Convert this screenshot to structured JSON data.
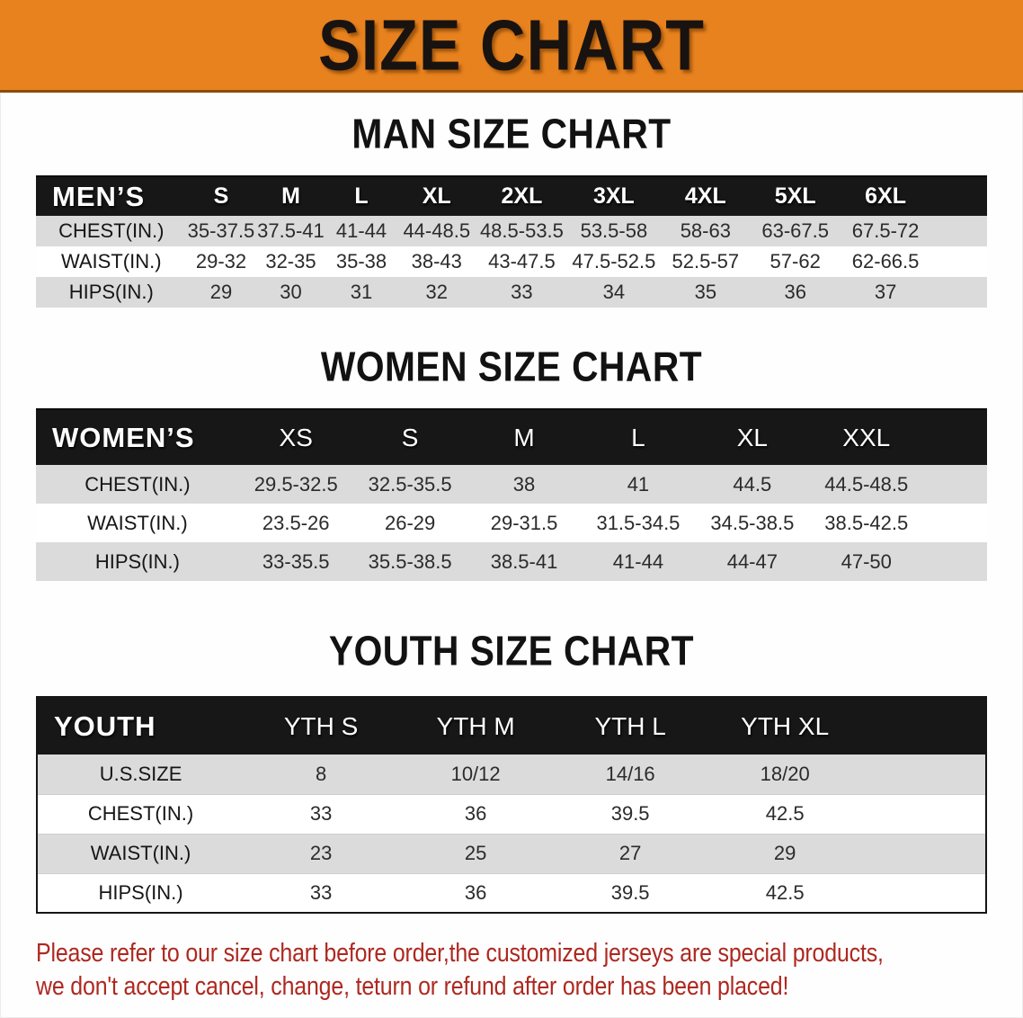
{
  "banner": {
    "title": "SIZE CHART"
  },
  "colors": {
    "banner_bg": "#E8821E",
    "header_bg": "#171717",
    "row_alt": "#DBDBDB",
    "note_color": "#AE2820"
  },
  "sections": {
    "men": {
      "heading": "MAN SIZE CHART",
      "table": {
        "header_label": "MEN’S",
        "columns": [
          "S",
          "M",
          "L",
          "XL",
          "2XL",
          "3XL",
          "4XL",
          "5XL",
          "6XL"
        ],
        "rows": [
          {
            "label": "CHEST(IN.)",
            "values": [
              "35-37.5",
              "37.5-41",
              "41-44",
              "44-48.5",
              "48.5-53.5",
              "53.5-58",
              "58-63",
              "63-67.5",
              "67.5-72"
            ]
          },
          {
            "label": "WAIST(IN.)",
            "values": [
              "29-32",
              "32-35",
              "35-38",
              "38-43",
              "43-47.5",
              "47.5-52.5",
              "52.5-57",
              "57-62",
              "62-66.5"
            ]
          },
          {
            "label": "HIPS(IN.)",
            "values": [
              "29",
              "30",
              "31",
              "32",
              "33",
              "34",
              "35",
              "36",
              "37"
            ]
          }
        ]
      }
    },
    "women": {
      "heading": "WOMEN SIZE CHART",
      "table": {
        "header_label": "WOMEN’S",
        "columns": [
          "XS",
          "S",
          "M",
          "L",
          "XL",
          "XXL"
        ],
        "rows": [
          {
            "label": "CHEST(IN.)",
            "values": [
              "29.5-32.5",
              "32.5-35.5",
              "38",
              "41",
              "44.5",
              "44.5-48.5"
            ]
          },
          {
            "label": "WAIST(IN.)",
            "values": [
              "23.5-26",
              "26-29",
              "29-31.5",
              "31.5-34.5",
              "34.5-38.5",
              "38.5-42.5"
            ]
          },
          {
            "label": "HIPS(IN.)",
            "values": [
              "33-35.5",
              "35.5-38.5",
              "38.5-41",
              "41-44",
              "44-47",
              "47-50"
            ]
          }
        ]
      }
    },
    "youth": {
      "heading": "YOUTH SIZE CHART",
      "table": {
        "header_label": "YOUTH",
        "columns": [
          "YTH S",
          "YTH M",
          "YTH L",
          "YTH XL"
        ],
        "rows": [
          {
            "label": "U.S.SIZE",
            "values": [
              "8",
              "10/12",
              "14/16",
              "18/20"
            ]
          },
          {
            "label": "CHEST(IN.)",
            "values": [
              "33",
              "36",
              "39.5",
              "42.5"
            ]
          },
          {
            "label": "WAIST(IN.)",
            "values": [
              "23",
              "25",
              "27",
              "29"
            ]
          },
          {
            "label": "HIPS(IN.)",
            "values": [
              "33",
              "36",
              "39.5",
              "42.5"
            ]
          }
        ]
      }
    }
  },
  "note": {
    "line1": "Please refer to our size chart before order,the customized jerseys are special products,",
    "line2": "we don't accept cancel, change, teturn or refund after order has been placed!"
  }
}
